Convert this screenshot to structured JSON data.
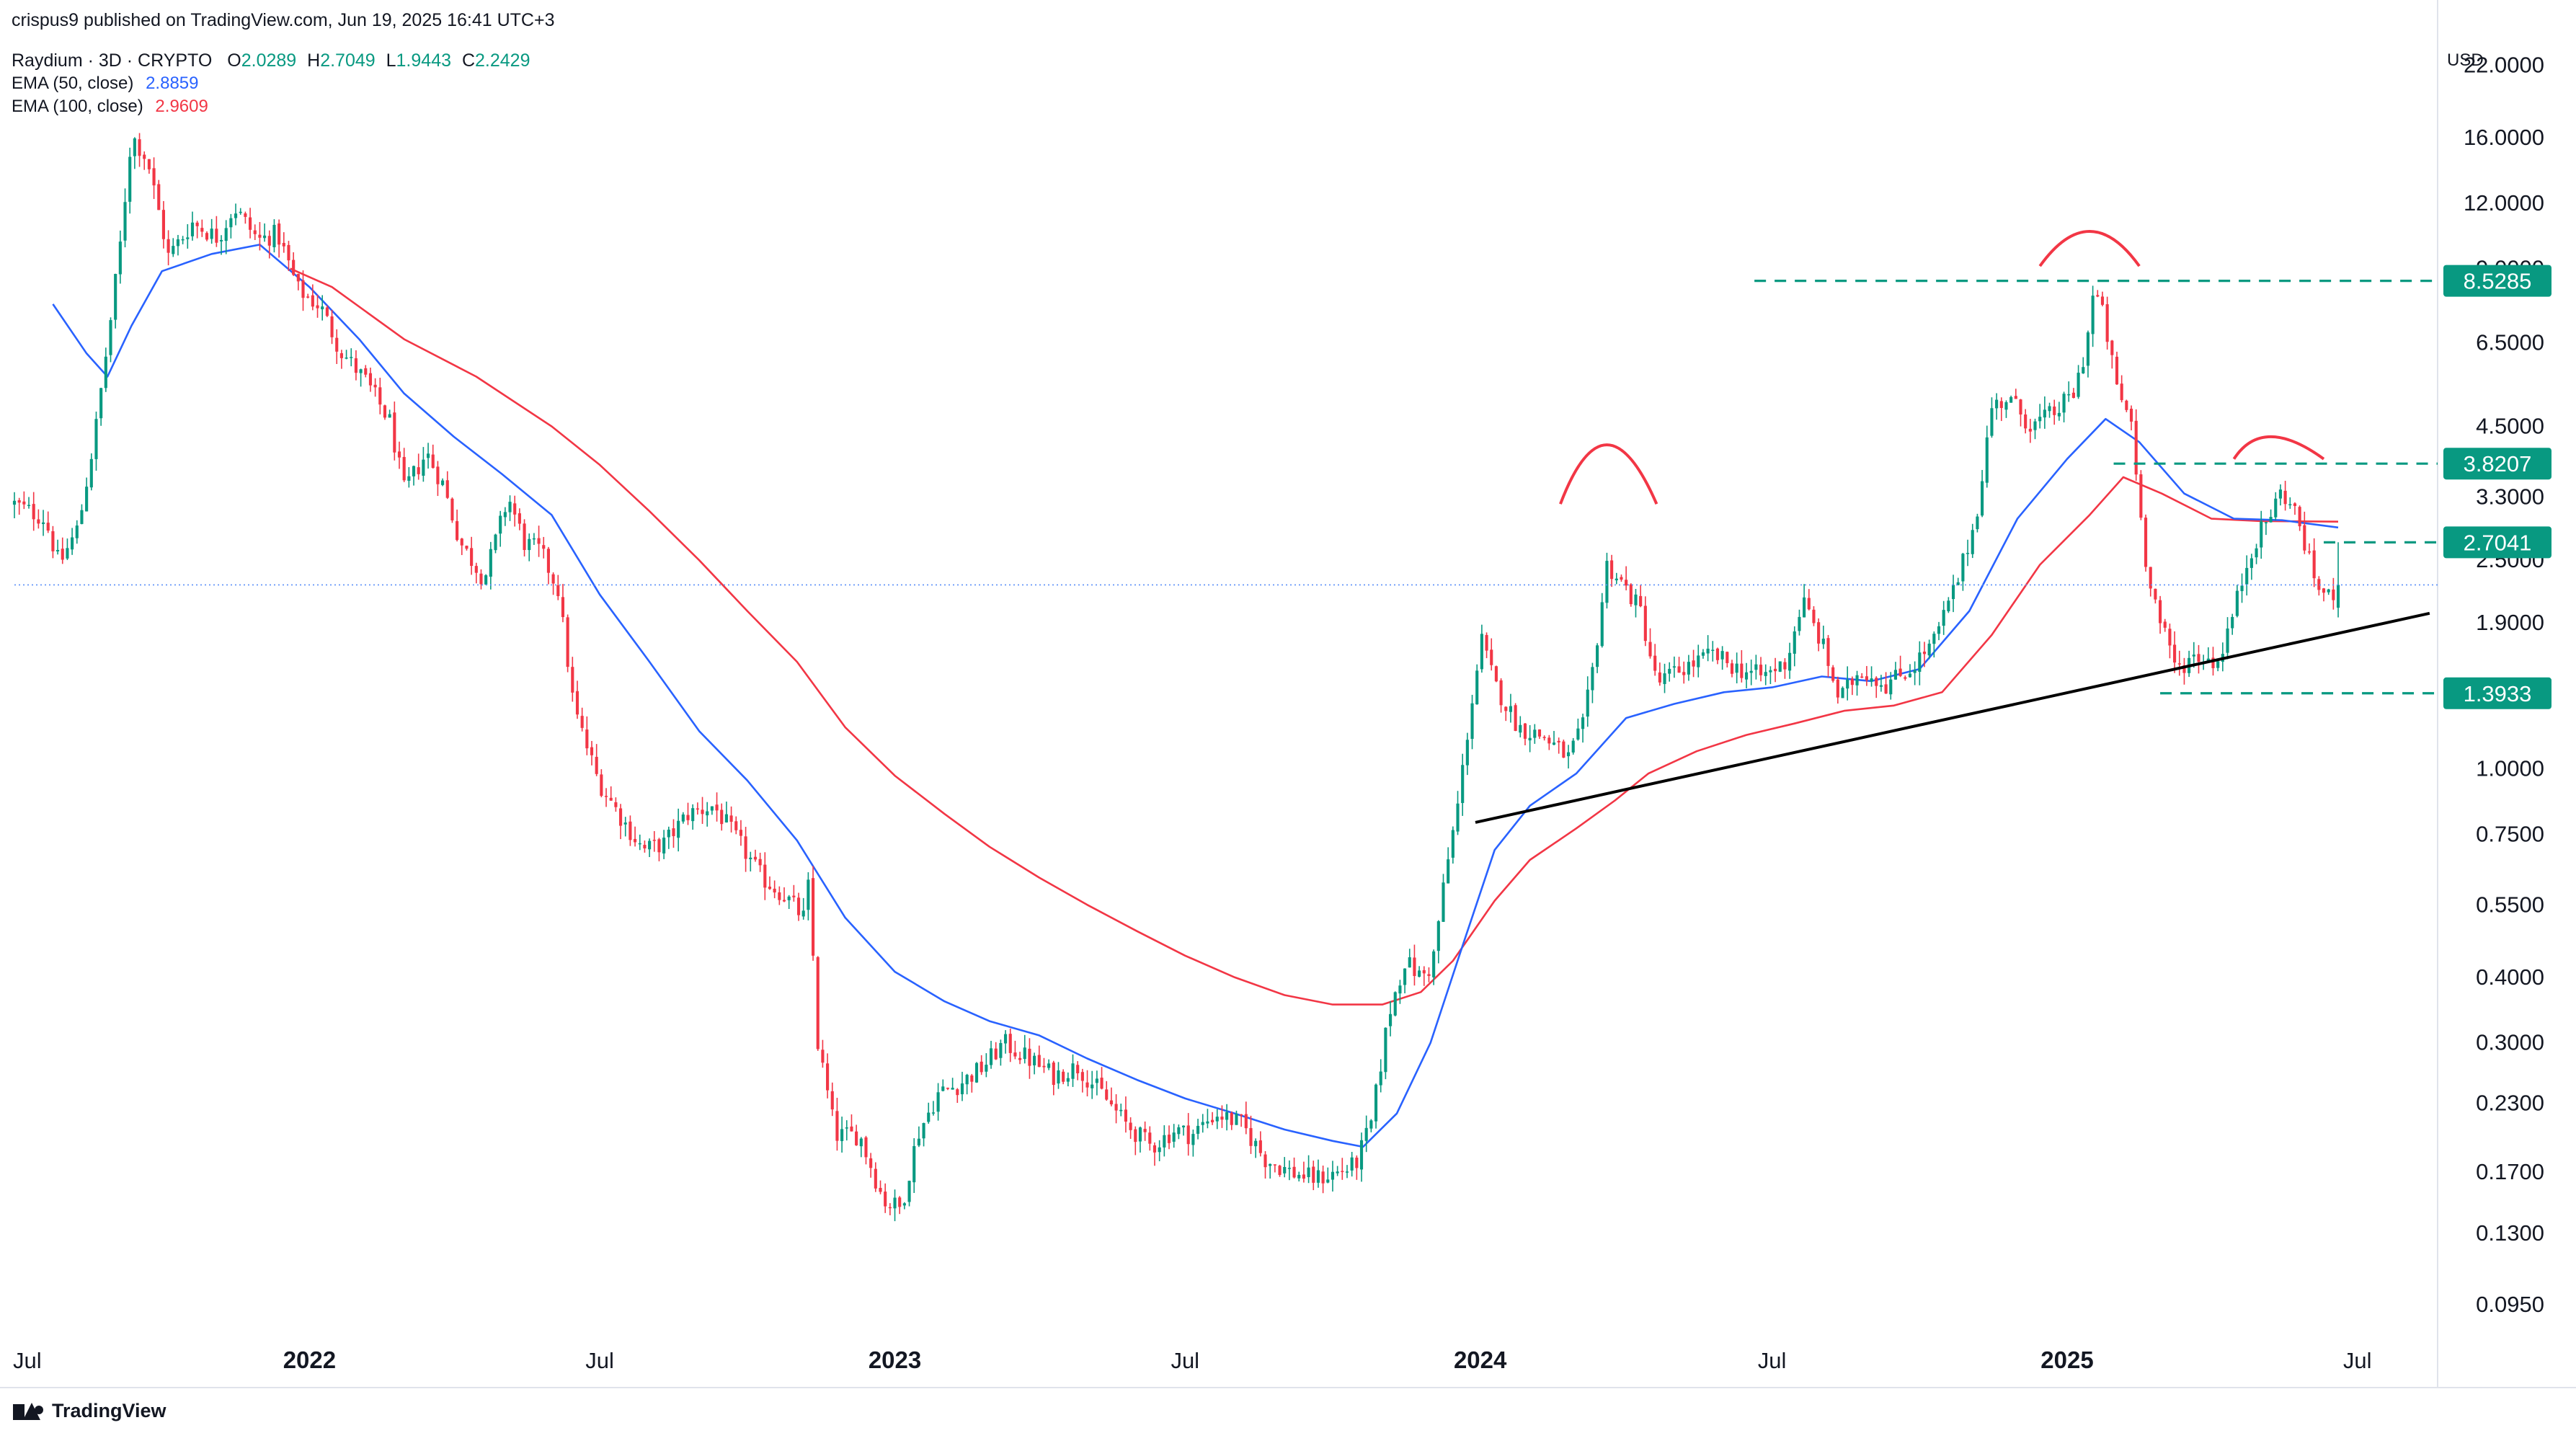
{
  "header": {
    "publisher": "crispus9 published on TradingView.com, Jun 19, 2025 16:41 UTC+3",
    "symbol": "Raydium · 3D · CRYPTO",
    "ohlc": {
      "o_label": "O",
      "o": "2.0289",
      "h_label": "H",
      "h": "2.7049",
      "l_label": "L",
      "l": "1.9443",
      "c_label": "C",
      "c": "2.2429"
    },
    "indicators": [
      {
        "label": "EMA (50, close)",
        "value": "2.8859"
      },
      {
        "label": "EMA (100, close)",
        "value": "2.9609"
      }
    ]
  },
  "currency": "USD",
  "branding": "TradingView",
  "colors": {
    "up": "#089981",
    "down": "#f23645",
    "ema50": "#2962ff",
    "ema100": "#f23645",
    "level": "#089981",
    "trendline": "#000000",
    "arc": "#f23645",
    "axis_text": "#131722"
  },
  "chart_data": {
    "type": "candlestick",
    "title": "Raydium · 3D · CRYPTO",
    "scale": "log",
    "ylim": [
      0.085,
      25
    ],
    "xlim": [
      "2021-07-01",
      "2025-08-20"
    ],
    "y_ticks": [
      "22.0000",
      "16.0000",
      "12.0000",
      "9.0000",
      "6.5000",
      "4.5000",
      "3.3000",
      "2.5000",
      "1.9000",
      "1.4000",
      "1.0000",
      "0.7500",
      "0.5500",
      "0.4000",
      "0.3000",
      "0.2300",
      "0.1700",
      "0.1300",
      "0.0950"
    ],
    "x_ticks": [
      {
        "label": "Jul",
        "date": "2021-07-01",
        "bold": false
      },
      {
        "label": "2022",
        "date": "2022-01-01",
        "bold": true
      },
      {
        "label": "Jul",
        "date": "2022-07-01",
        "bold": false
      },
      {
        "label": "2023",
        "date": "2023-01-01",
        "bold": true
      },
      {
        "label": "Jul",
        "date": "2023-07-01",
        "bold": false
      },
      {
        "label": "2024",
        "date": "2024-01-01",
        "bold": true
      },
      {
        "label": "Jul",
        "date": "2024-07-01",
        "bold": false
      },
      {
        "label": "2025",
        "date": "2025-01-01",
        "bold": true
      },
      {
        "label": "Jul",
        "date": "2025-07-01",
        "bold": false
      }
    ],
    "last_price": 2.2429,
    "levels": [
      {
        "label": "8.5285",
        "value": 8.5285,
        "from": "2024-06-20"
      },
      {
        "label": "3.8207",
        "value": 3.8207,
        "from": "2025-01-30"
      },
      {
        "label": "2.7041",
        "value": 2.7041,
        "from": "2025-06-10"
      },
      {
        "label": "1.3933",
        "value": 1.3933,
        "from": "2025-02-28"
      }
    ],
    "trendline": {
      "from": [
        "2023-12-29",
        0.79
      ],
      "to": [
        "2025-08-15",
        1.98
      ]
    },
    "arcs": [
      {
        "from": [
          "2024-02-20",
          3.2
        ],
        "peak": [
          "2024-03-20",
          4.15
        ],
        "to": [
          "2024-04-20",
          3.2
        ]
      },
      {
        "from": [
          "2024-12-15",
          9.1
        ],
        "peak": [
          "2025-01-15",
          10.6
        ],
        "to": [
          "2025-02-15",
          9.1
        ]
      },
      {
        "from": [
          "2025-04-15",
          3.9
        ],
        "peak": [
          "2025-05-08",
          4.3
        ],
        "to": [
          "2025-06-10",
          3.9
        ]
      }
    ],
    "price_anchors": [
      [
        "2021-07-01",
        3.2
      ],
      [
        "2021-07-20",
        3.0
      ],
      [
        "2021-07-29",
        2.45
      ],
      [
        "2021-08-10",
        2.9
      ],
      [
        "2021-08-20",
        4.3
      ],
      [
        "2021-08-29",
        6.8
      ],
      [
        "2021-09-05",
        10.0
      ],
      [
        "2021-09-12",
        16.2
      ],
      [
        "2021-09-22",
        14.5
      ],
      [
        "2021-10-05",
        9.5
      ],
      [
        "2021-10-20",
        11.0
      ],
      [
        "2021-11-05",
        10.3
      ],
      [
        "2021-11-15",
        11.8
      ],
      [
        "2021-11-30",
        10.2
      ],
      [
        "2021-12-12",
        10.5
      ],
      [
        "2021-12-25",
        8.2
      ],
      [
        "2022-01-08",
        7.6
      ],
      [
        "2022-01-20",
        6.3
      ],
      [
        "2022-02-05",
        5.5
      ],
      [
        "2022-02-20",
        4.6
      ],
      [
        "2022-03-01",
        3.4
      ],
      [
        "2022-03-15",
        4.0
      ],
      [
        "2022-03-25",
        3.5
      ],
      [
        "2022-04-05",
        2.7
      ],
      [
        "2022-04-20",
        2.3
      ],
      [
        "2022-05-05",
        3.3
      ],
      [
        "2022-05-15",
        2.7
      ],
      [
        "2022-05-25",
        2.6
      ],
      [
        "2022-06-05",
        2.2
      ],
      [
        "2022-06-15",
        1.3
      ],
      [
        "2022-06-30",
        0.95
      ],
      [
        "2022-07-15",
        0.8
      ],
      [
        "2022-07-28",
        0.7
      ],
      [
        "2022-08-10",
        0.72
      ],
      [
        "2022-08-25",
        0.82
      ],
      [
        "2022-09-10",
        0.85
      ],
      [
        "2022-09-25",
        0.73
      ],
      [
        "2022-10-10",
        0.62
      ],
      [
        "2022-10-25",
        0.57
      ],
      [
        "2022-11-05",
        0.52
      ],
      [
        "2022-11-09",
        0.62
      ],
      [
        "2022-11-13",
        0.31
      ],
      [
        "2022-11-25",
        0.2
      ],
      [
        "2022-12-10",
        0.2
      ],
      [
        "2022-12-25",
        0.15
      ],
      [
        "2023-01-05",
        0.145
      ],
      [
        "2023-01-15",
        0.2
      ],
      [
        "2023-01-28",
        0.24
      ],
      [
        "2023-02-10",
        0.25
      ],
      [
        "2023-02-25",
        0.27
      ],
      [
        "2023-03-10",
        0.3
      ],
      [
        "2023-03-25",
        0.28
      ],
      [
        "2023-04-10",
        0.26
      ],
      [
        "2023-04-25",
        0.27
      ],
      [
        "2023-05-10",
        0.24
      ],
      [
        "2023-05-25",
        0.21
      ],
      [
        "2023-06-10",
        0.19
      ],
      [
        "2023-06-25",
        0.205
      ],
      [
        "2023-07-05",
        0.2
      ],
      [
        "2023-07-20",
        0.22
      ],
      [
        "2023-08-05",
        0.21
      ],
      [
        "2023-08-20",
        0.18
      ],
      [
        "2023-09-05",
        0.17
      ],
      [
        "2023-09-20",
        0.165
      ],
      [
        "2023-10-05",
        0.17
      ],
      [
        "2023-10-15",
        0.175
      ],
      [
        "2023-10-25",
        0.21
      ],
      [
        "2023-11-05",
        0.34
      ],
      [
        "2023-11-15",
        0.43
      ],
      [
        "2023-11-25",
        0.4
      ],
      [
        "2023-12-02",
        0.42
      ],
      [
        "2023-12-10",
        0.62
      ],
      [
        "2023-12-18",
        0.85
      ],
      [
        "2023-12-26",
        1.3
      ],
      [
        "2024-01-02",
        1.75
      ],
      [
        "2024-01-10",
        1.45
      ],
      [
        "2024-01-25",
        1.2
      ],
      [
        "2024-02-10",
        1.15
      ],
      [
        "2024-02-25",
        1.05
      ],
      [
        "2024-03-05",
        1.2
      ],
      [
        "2024-03-12",
        1.6
      ],
      [
        "2024-03-20",
        2.45
      ],
      [
        "2024-03-30",
        2.25
      ],
      [
        "2024-04-10",
        2.0
      ],
      [
        "2024-04-20",
        1.45
      ],
      [
        "2024-05-05",
        1.55
      ],
      [
        "2024-05-25",
        1.65
      ],
      [
        "2024-06-10",
        1.55
      ],
      [
        "2024-06-25",
        1.5
      ],
      [
        "2024-07-10",
        1.6
      ],
      [
        "2024-07-20",
        2.1
      ],
      [
        "2024-08-02",
        1.7
      ],
      [
        "2024-08-12",
        1.35
      ],
      [
        "2024-08-25",
        1.55
      ],
      [
        "2024-09-10",
        1.45
      ],
      [
        "2024-09-25",
        1.55
      ],
      [
        "2024-10-10",
        1.75
      ],
      [
        "2024-10-25",
        2.3
      ],
      [
        "2024-11-05",
        3.0
      ],
      [
        "2024-11-15",
        4.9
      ],
      [
        "2024-11-25",
        5.1
      ],
      [
        "2024-12-10",
        4.5
      ],
      [
        "2024-12-25",
        4.8
      ],
      [
        "2025-01-05",
        5.2
      ],
      [
        "2025-01-12",
        6.2
      ],
      [
        "2025-01-18",
        8.3
      ],
      [
        "2025-01-24",
        7.2
      ],
      [
        "2025-02-01",
        5.3
      ],
      [
        "2025-02-10",
        4.6
      ],
      [
        "2025-02-18",
        2.6
      ],
      [
        "2025-02-28",
        1.9
      ],
      [
        "2025-03-10",
        1.55
      ],
      [
        "2025-03-22",
        1.65
      ],
      [
        "2025-04-05",
        1.6
      ],
      [
        "2025-04-15",
        2.0
      ],
      [
        "2025-04-25",
        2.6
      ],
      [
        "2025-05-05",
        2.95
      ],
      [
        "2025-05-15",
        3.4
      ],
      [
        "2025-05-25",
        3.0
      ],
      [
        "2025-06-03",
        2.35
      ],
      [
        "2025-06-12",
        2.1
      ],
      [
        "2025-06-19",
        2.2429
      ]
    ],
    "series": [
      {
        "name": "EMA (50, close)",
        "color": "#2962ff",
        "points": [
          [
            "2021-07-25",
            7.7
          ],
          [
            "2021-08-15",
            6.2
          ],
          [
            "2021-08-28",
            5.6
          ],
          [
            "2021-09-12",
            7.0
          ],
          [
            "2021-10-01",
            8.9
          ],
          [
            "2021-11-01",
            9.6
          ],
          [
            "2021-12-01",
            10.0
          ],
          [
            "2022-01-01",
            8.3
          ],
          [
            "2022-02-01",
            6.6
          ],
          [
            "2022-03-01",
            5.2
          ],
          [
            "2022-04-01",
            4.3
          ],
          [
            "2022-05-01",
            3.65
          ],
          [
            "2022-06-01",
            3.05
          ],
          [
            "2022-07-01",
            2.15
          ],
          [
            "2022-08-01",
            1.6
          ],
          [
            "2022-09-01",
            1.18
          ],
          [
            "2022-10-01",
            0.95
          ],
          [
            "2022-11-01",
            0.73
          ],
          [
            "2022-12-01",
            0.52
          ],
          [
            "2023-01-01",
            0.41
          ],
          [
            "2023-02-01",
            0.36
          ],
          [
            "2023-03-01",
            0.33
          ],
          [
            "2023-04-01",
            0.31
          ],
          [
            "2023-05-01",
            0.28
          ],
          [
            "2023-06-01",
            0.255
          ],
          [
            "2023-07-01",
            0.235
          ],
          [
            "2023-08-01",
            0.22
          ],
          [
            "2023-09-01",
            0.205
          ],
          [
            "2023-10-01",
            0.195
          ],
          [
            "2023-10-20",
            0.19
          ],
          [
            "2023-11-10",
            0.22
          ],
          [
            "2023-12-01",
            0.3
          ],
          [
            "2023-12-20",
            0.45
          ],
          [
            "2024-01-10",
            0.7
          ],
          [
            "2024-02-01",
            0.85
          ],
          [
            "2024-03-01",
            0.98
          ],
          [
            "2024-04-01",
            1.25
          ],
          [
            "2024-05-01",
            1.33
          ],
          [
            "2024-06-01",
            1.4
          ],
          [
            "2024-07-01",
            1.43
          ],
          [
            "2024-08-01",
            1.5
          ],
          [
            "2024-09-01",
            1.47
          ],
          [
            "2024-10-01",
            1.55
          ],
          [
            "2024-11-01",
            2.0
          ],
          [
            "2024-12-01",
            3.0
          ],
          [
            "2025-01-01",
            3.9
          ],
          [
            "2025-01-25",
            4.65
          ],
          [
            "2025-02-15",
            4.2
          ],
          [
            "2025-03-15",
            3.35
          ],
          [
            "2025-04-15",
            3.0
          ],
          [
            "2025-05-15",
            2.98
          ],
          [
            "2025-06-19",
            2.8859
          ]
        ]
      },
      {
        "name": "EMA (100, close)",
        "color": "#f23645",
        "points": [
          [
            "2021-12-20",
            9.0
          ],
          [
            "2022-01-15",
            8.3
          ],
          [
            "2022-03-01",
            6.6
          ],
          [
            "2022-04-15",
            5.6
          ],
          [
            "2022-06-01",
            4.5
          ],
          [
            "2022-07-01",
            3.8
          ],
          [
            "2022-08-01",
            3.1
          ],
          [
            "2022-09-01",
            2.5
          ],
          [
            "2022-10-01",
            2.0
          ],
          [
            "2022-11-01",
            1.6
          ],
          [
            "2022-12-01",
            1.2
          ],
          [
            "2023-01-01",
            0.97
          ],
          [
            "2023-02-01",
            0.82
          ],
          [
            "2023-03-01",
            0.71
          ],
          [
            "2023-04-01",
            0.62
          ],
          [
            "2023-05-01",
            0.55
          ],
          [
            "2023-06-01",
            0.49
          ],
          [
            "2023-07-01",
            0.44
          ],
          [
            "2023-08-01",
            0.4
          ],
          [
            "2023-09-01",
            0.37
          ],
          [
            "2023-10-01",
            0.355
          ],
          [
            "2023-11-01",
            0.355
          ],
          [
            "2023-11-25",
            0.375
          ],
          [
            "2023-12-15",
            0.43
          ],
          [
            "2024-01-10",
            0.56
          ],
          [
            "2024-02-01",
            0.67
          ],
          [
            "2024-03-01",
            0.77
          ],
          [
            "2024-03-25",
            0.87
          ],
          [
            "2024-04-15",
            0.98
          ],
          [
            "2024-05-15",
            1.08
          ],
          [
            "2024-06-15",
            1.16
          ],
          [
            "2024-07-15",
            1.22
          ],
          [
            "2024-08-15",
            1.29
          ],
          [
            "2024-09-15",
            1.32
          ],
          [
            "2024-10-15",
            1.4
          ],
          [
            "2024-11-15",
            1.8
          ],
          [
            "2024-12-15",
            2.45
          ],
          [
            "2025-01-15",
            3.05
          ],
          [
            "2025-02-05",
            3.6
          ],
          [
            "2025-03-01",
            3.35
          ],
          [
            "2025-04-01",
            3.0
          ],
          [
            "2025-05-01",
            2.97
          ],
          [
            "2025-06-19",
            2.9609
          ]
        ]
      }
    ]
  }
}
